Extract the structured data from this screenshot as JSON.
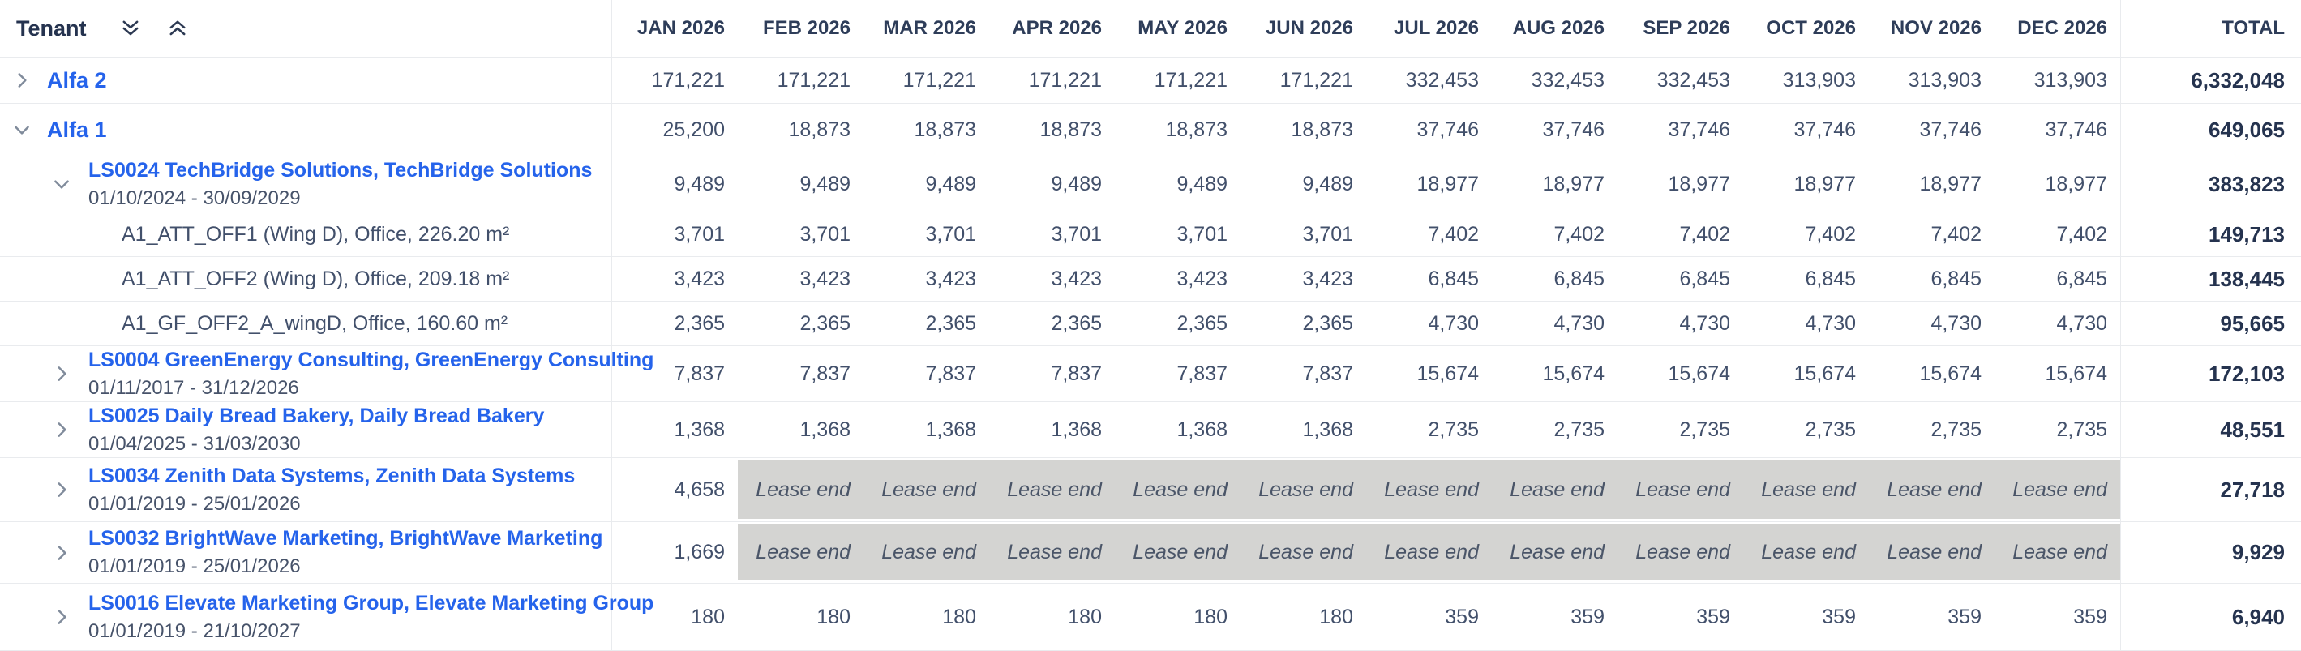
{
  "header": {
    "tenant_label": "Tenant",
    "months": [
      "JAN 2026",
      "FEB 2026",
      "MAR 2026",
      "APR 2026",
      "MAY 2026",
      "JUN 2026",
      "JUL 2026",
      "AUG 2026",
      "SEP 2026",
      "OCT 2026",
      "NOV 2026",
      "DEC 2026"
    ],
    "total_label": "TOTAL",
    "icons": {
      "expand_all": "double-chevron-down",
      "collapse_all": "double-chevron-up"
    }
  },
  "lease_end_label": "Lease end",
  "colors": {
    "link_blue": "#2563eb",
    "text_dark": "#42506b",
    "total_dark": "#25334f",
    "lease_end_bg": "#d4d4d2",
    "row_border": "#e9ebee"
  },
  "rows": [
    {
      "type": "tenant",
      "name": "Alfa 2",
      "expanded": false,
      "values": [
        "171,221",
        "171,221",
        "171,221",
        "171,221",
        "171,221",
        "171,221",
        "332,453",
        "332,453",
        "332,453",
        "313,903",
        "313,903",
        "313,903"
      ],
      "total": "6,332,048"
    },
    {
      "type": "tenant",
      "name": "Alfa 1",
      "expanded": true,
      "values": [
        "25,200",
        "18,873",
        "18,873",
        "18,873",
        "18,873",
        "18,873",
        "37,746",
        "37,746",
        "37,746",
        "37,746",
        "37,746",
        "37,746"
      ],
      "total": "649,065"
    },
    {
      "type": "lease",
      "name": "LS0024 TechBridge Solutions, TechBridge Solutions",
      "dates": "01/10/2024 - 30/09/2029",
      "expanded": true,
      "values": [
        "9,489",
        "9,489",
        "9,489",
        "9,489",
        "9,489",
        "9,489",
        "18,977",
        "18,977",
        "18,977",
        "18,977",
        "18,977",
        "18,977"
      ],
      "total": "383,823"
    },
    {
      "type": "unit",
      "name": "A1_ATT_OFF1 (Wing D), Office, 226.20 m²",
      "values": [
        "3,701",
        "3,701",
        "3,701",
        "3,701",
        "3,701",
        "3,701",
        "7,402",
        "7,402",
        "7,402",
        "7,402",
        "7,402",
        "7,402"
      ],
      "total": "149,713"
    },
    {
      "type": "unit",
      "name": "A1_ATT_OFF2 (Wing D), Office, 209.18 m²",
      "values": [
        "3,423",
        "3,423",
        "3,423",
        "3,423",
        "3,423",
        "3,423",
        "6,845",
        "6,845",
        "6,845",
        "6,845",
        "6,845",
        "6,845"
      ],
      "total": "138,445"
    },
    {
      "type": "unit",
      "name": "A1_GF_OFF2_A_wingD, Office, 160.60 m²",
      "values": [
        "2,365",
        "2,365",
        "2,365",
        "2,365",
        "2,365",
        "2,365",
        "4,730",
        "4,730",
        "4,730",
        "4,730",
        "4,730",
        "4,730"
      ],
      "total": "95,665"
    },
    {
      "type": "lease",
      "name": "LS0004 GreenEnergy Consulting, GreenEnergy Consulting",
      "dates": "01/11/2017 - 31/12/2026",
      "expanded": false,
      "values": [
        "7,837",
        "7,837",
        "7,837",
        "7,837",
        "7,837",
        "7,837",
        "15,674",
        "15,674",
        "15,674",
        "15,674",
        "15,674",
        "15,674"
      ],
      "total": "172,103"
    },
    {
      "type": "lease",
      "name": "LS0025 Daily Bread Bakery, Daily Bread Bakery",
      "dates": "01/04/2025 - 31/03/2030",
      "expanded": false,
      "values": [
        "1,368",
        "1,368",
        "1,368",
        "1,368",
        "1,368",
        "1,368",
        "2,735",
        "2,735",
        "2,735",
        "2,735",
        "2,735",
        "2,735"
      ],
      "total": "48,551"
    },
    {
      "type": "lease",
      "name": "LS0034 Zenith Data Systems, Zenith Data Systems",
      "dates": "01/01/2019 - 25/01/2026",
      "expanded": false,
      "values": [
        "4,658",
        "Lease end",
        "Lease end",
        "Lease end",
        "Lease end",
        "Lease end",
        "Lease end",
        "Lease end",
        "Lease end",
        "Lease end",
        "Lease end",
        "Lease end"
      ],
      "total": "27,718"
    },
    {
      "type": "lease",
      "name": "LS0032 BrightWave Marketing, BrightWave Marketing",
      "dates": "01/01/2019 - 25/01/2026",
      "expanded": false,
      "values": [
        "1,669",
        "Lease end",
        "Lease end",
        "Lease end",
        "Lease end",
        "Lease end",
        "Lease end",
        "Lease end",
        "Lease end",
        "Lease end",
        "Lease end",
        "Lease end"
      ],
      "total": "9,929"
    },
    {
      "type": "lease",
      "name": "LS0016 Elevate Marketing Group, Elevate Marketing Group",
      "dates": "01/01/2019 - 21/10/2027",
      "expanded": false,
      "values": [
        "180",
        "180",
        "180",
        "180",
        "180",
        "180",
        "359",
        "359",
        "359",
        "359",
        "359",
        "359"
      ],
      "total": "6,940"
    }
  ]
}
